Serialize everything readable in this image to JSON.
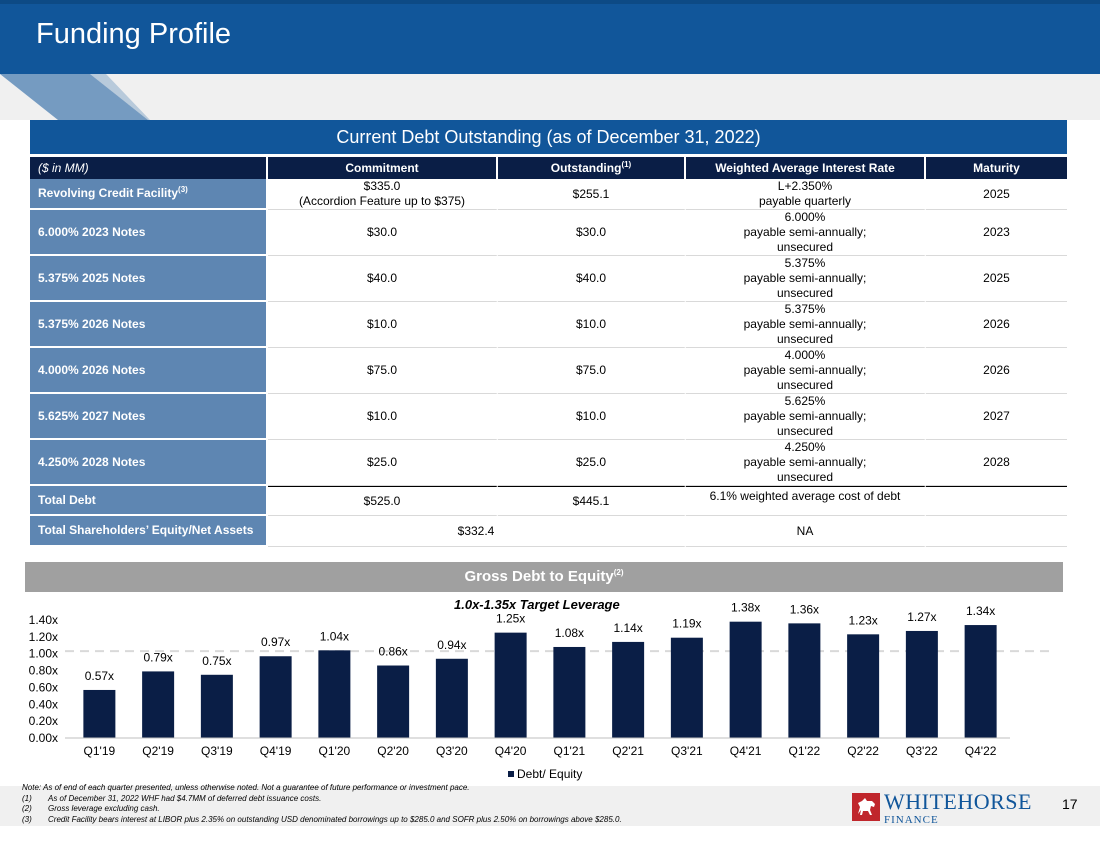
{
  "slide": {
    "title": "Funding Profile",
    "page_number": "17"
  },
  "table": {
    "section_title": "Current Debt Outstanding (as of December 31, 2022)",
    "headers": {
      "units": "($ in MM)",
      "commitment": "Commitment",
      "outstanding": "Outstanding",
      "outstanding_note": "(1)",
      "rate": "Weighted Average Interest Rate",
      "maturity": "Maturity"
    },
    "rows": [
      {
        "label": "Revolving Credit Facility",
        "note": "(3)",
        "commitment_1": "$335.0",
        "commitment_2": "(Accordion Feature up to $375)",
        "outstanding": "$255.1",
        "rate_1": "L+2.350%",
        "rate_2": "payable quarterly",
        "maturity": "2025"
      },
      {
        "label": "6.000% 2023 Notes",
        "commitment": "$30.0",
        "outstanding": "$30.0",
        "rate_1": "6.000%",
        "rate_2": "payable semi-annually;",
        "rate_3": "unsecured",
        "maturity": "2023"
      },
      {
        "label": "5.375% 2025 Notes",
        "commitment": "$40.0",
        "outstanding": "$40.0",
        "rate_1": "5.375%",
        "rate_2": "payable semi-annually;",
        "rate_3": "unsecured",
        "maturity": "2025"
      },
      {
        "label": "5.375% 2026 Notes",
        "commitment": "$10.0",
        "outstanding": "$10.0",
        "rate_1": "5.375%",
        "rate_2": "payable semi-annually;",
        "rate_3": "unsecured",
        "maturity": "2026"
      },
      {
        "label": "4.000% 2026 Notes",
        "commitment": "$75.0",
        "outstanding": "$75.0",
        "rate_1": "4.000%",
        "rate_2": "payable semi-annually;",
        "rate_3": "unsecured",
        "maturity": "2026"
      },
      {
        "label": "5.625% 2027 Notes",
        "commitment": "$10.0",
        "outstanding": "$10.0",
        "rate_1": "5.625%",
        "rate_2": "payable semi-annually;",
        "rate_3": "unsecured",
        "maturity": "2027"
      },
      {
        "label": "4.250% 2028 Notes",
        "commitment": "$25.0",
        "outstanding": "$25.0",
        "rate_1": "4.250%",
        "rate_2": "payable semi-annually;",
        "rate_3": "unsecured",
        "maturity": "2028"
      }
    ],
    "total_debt": {
      "label": "Total Debt",
      "commitment": "$525.0",
      "outstanding": "$445.1",
      "rate": "6.1% weighted average cost of debt",
      "maturity": ""
    },
    "equity": {
      "label": "Total Shareholders’ Equity/Net Assets",
      "value": "$332.4",
      "rate": "NA",
      "maturity": ""
    }
  },
  "chart_section": {
    "title": "Gross Debt to Equity",
    "title_note": "(2)",
    "target_label": "1.0x-1.35x Target Leverage",
    "legend_label": "Debt/ Equity"
  },
  "chart_data": {
    "type": "bar",
    "title": "Gross Debt to Equity",
    "categories": [
      "Q1'19",
      "Q2'19",
      "Q3'19",
      "Q4'19",
      "Q1'20",
      "Q2'20",
      "Q3'20",
      "Q4'20",
      "Q1'21",
      "Q2'21",
      "Q3'21",
      "Q4'21",
      "Q1'22",
      "Q2'22",
      "Q3'22",
      "Q4'22"
    ],
    "series": [
      {
        "name": "Debt/ Equity",
        "values": [
          0.57,
          0.79,
          0.75,
          0.97,
          1.04,
          0.86,
          0.94,
          1.25,
          1.08,
          1.14,
          1.19,
          1.38,
          1.36,
          1.23,
          1.27,
          1.34
        ],
        "labels": [
          "0.57x",
          "0.79x",
          "0.75x",
          "0.97x",
          "1.04x",
          "0.86x",
          "0.94x",
          "1.25x",
          "1.08x",
          "1.14x",
          "1.19x",
          "1.38x",
          "1.36x",
          "1.23x",
          "1.27x",
          "1.34x"
        ],
        "color": "#0a1e46"
      }
    ],
    "y_ticks": [
      "0.00x",
      "0.20x",
      "0.40x",
      "0.60x",
      "0.80x",
      "1.00x",
      "1.20x",
      "1.40x"
    ],
    "ylim": [
      0,
      1.4
    ],
    "reference_line": {
      "value": 1.03,
      "style": "dashed",
      "color": "#d9d9d9"
    },
    "legend": "bottom-center"
  },
  "notes": {
    "main": "Note: As of end of each quarter presented, unless otherwise noted. Not a guarantee of future performance or investment pace.",
    "items": [
      {
        "num": "(1)",
        "text": "As of December 31, 2022  WHF had $4.7MM of deferred debt issuance costs."
      },
      {
        "num": "(2)",
        "text": "Gross leverage excluding cash."
      },
      {
        "num": "(3)",
        "text": "Credit Facility bears interest at LIBOR plus 2.35% on outstanding USD denominated borrowings up to $285.0 and SOFR plus 2.50% on borrowings above $285.0."
      }
    ]
  },
  "logo": {
    "line1": "WHITEHORSE",
    "line2": "FINANCE"
  },
  "colors": {
    "brand_blue": "#11569a",
    "navy": "#0a1e46",
    "row_label_blue": "#5e86b2",
    "gray_bar": "#a0a0a0"
  }
}
